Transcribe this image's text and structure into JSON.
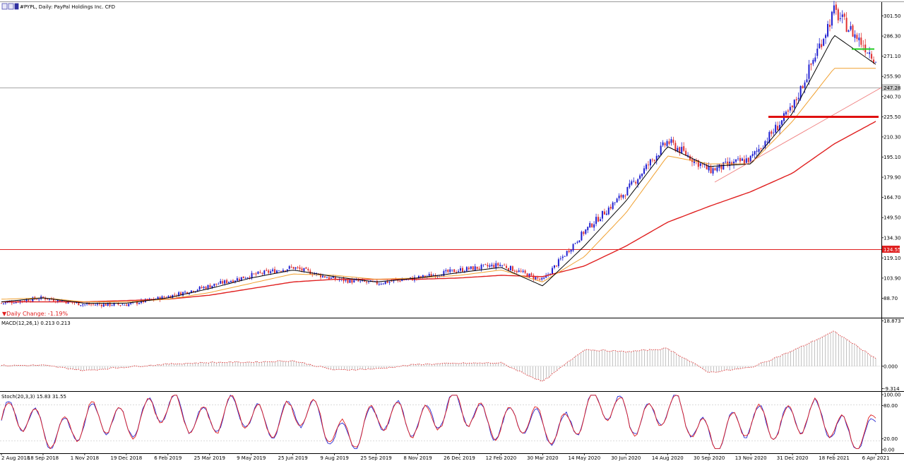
{
  "header": {
    "title": "#PYPL, Daily:  PayPal Holdings Inc. CFD"
  },
  "price_panel": {
    "ticks": [
      "301.50",
      "286.30",
      "271.10",
      "255.90",
      "240.70",
      "225.50",
      "210.30",
      "195.10",
      "179.90",
      "164.70",
      "149.50",
      "134.30",
      "119.10",
      "103.90",
      "88.70"
    ],
    "last_price": "247.28",
    "level_label": "124.55",
    "daily_change": "▼Daily Change: -1.19%"
  },
  "macd_panel": {
    "label": "MACD(12,26,1) 0.213 0.213",
    "ticks": [
      "18.873",
      "0.000",
      "-9.314"
    ]
  },
  "stoch_panel": {
    "label": "Stoch(20,3,3) 15.83 31.55",
    "ticks": [
      "100.00",
      "80.00",
      "20.00",
      "0.00"
    ]
  },
  "x_axis": {
    "labels": [
      "2 Aug 2018",
      "18 Sep 2018",
      "1 Nov 2018",
      "19 Dec 2018",
      "6 Feb 2019",
      "25 Mar 2019",
      "9 May 2019",
      "25 Jun 2019",
      "9 Aug 2019",
      "25 Sep 2019",
      "8 Nov 2019",
      "26 Dec 2019",
      "12 Feb 2020",
      "30 Mar 2020",
      "14 May 2020",
      "30 Jun 2020",
      "14 Aug 2020",
      "30 Sep 2020",
      "13 Nov 2020",
      "31 Dec 2020",
      "18 Feb 2021",
      "6 Apr 2021"
    ]
  },
  "colors": {
    "bull": "#1f1fd0",
    "bear": "#e03030",
    "sma_fast": "#000000",
    "sma_mid": "#f0a030",
    "sma_slow": "#e02020",
    "resistance": "#22cc22",
    "level": "#e02020"
  },
  "chart_data": [
    {
      "type": "line",
      "title": "#PYPL, Daily:  PayPal Holdings Inc. CFD",
      "x": [
        "2 Aug 2018",
        "18 Sep 2018",
        "1 Nov 2018",
        "19 Dec 2018",
        "6 Feb 2019",
        "25 Mar 2019",
        "9 May 2019",
        "25 Jun 2019",
        "9 Aug 2019",
        "25 Sep 2019",
        "8 Nov 2019",
        "26 Dec 2019",
        "12 Feb 2020",
        "30 Mar 2020",
        "14 May 2020",
        "30 Jun 2020",
        "14 Aug 2020",
        "30 Sep 2020",
        "13 Nov 2020",
        "31 Dec 2020",
        "18 Feb 2021",
        "6 Apr 2021"
      ],
      "ylim": [
        83,
        310
      ],
      "series": [
        {
          "values": [
            85,
            89,
            84,
            84,
            90,
            98,
            106,
            112,
            103,
            100,
            104,
            110,
            114,
            102,
            139,
            169,
            207,
            185,
            194,
            232,
            305,
            269
          ]
        },
        {
          "values": [
            86,
            89,
            85,
            85,
            89,
            96,
            104,
            110,
            105,
            101,
            104,
            108,
            112,
            98,
            128,
            162,
            203,
            188,
            190,
            228,
            287,
            265
          ]
        },
        {
          "values": [
            88,
            89,
            86,
            86,
            88,
            93,
            100,
            107,
            106,
            103,
            104,
            106,
            110,
            101,
            120,
            153,
            196,
            190,
            190,
            222,
            262,
            262
          ]
        },
        {
          "values": [
            86,
            86,
            86,
            87,
            88,
            91,
            96,
            101,
            103,
            103,
            103,
            104,
            106,
            105,
            113,
            128,
            146,
            158,
            169,
            183,
            205,
            222
          ]
        }
      ],
      "horizontal_levels": [
        124.55,
        247.28,
        226,
        276
      ]
    },
    {
      "type": "bar",
      "title": "MACD(12,26,1) 0.213 0.213",
      "x": [
        "2 Aug 2018",
        "18 Sep 2018",
        "1 Nov 2018",
        "19 Dec 2018",
        "6 Feb 2019",
        "25 Mar 2019",
        "9 May 2019",
        "25 Jun 2019",
        "9 Aug 2019",
        "25 Sep 2019",
        "8 Nov 2019",
        "26 Dec 2019",
        "12 Feb 2020",
        "30 Mar 2020",
        "14 May 2020",
        "30 Jun 2020",
        "14 Aug 2020",
        "30 Sep 2020",
        "13 Nov 2020",
        "31 Dec 2020",
        "18 Feb 2021",
        "6 Apr 2021"
      ],
      "values": [
        0.3,
        0.4,
        -1.8,
        -0.3,
        0.9,
        1.6,
        1.7,
        2.3,
        -1.6,
        -1.1,
        0.8,
        1.2,
        1.4,
        -6.5,
        7.0,
        6.0,
        7.4,
        -2.6,
        -0.5,
        6.4,
        14.5,
        3.3
      ],
      "ylim": [
        -9.314,
        18.873
      ]
    },
    {
      "type": "line",
      "title": "Stoch(20,3,3) 15.83 31.55",
      "x": [
        "2 Aug 2018",
        "18 Sep 2018",
        "1 Nov 2018",
        "19 Dec 2018",
        "6 Feb 2019",
        "25 Mar 2019",
        "9 May 2019",
        "25 Jun 2019",
        "9 Aug 2019",
        "25 Sep 2019",
        "8 Nov 2019",
        "26 Dec 2019",
        "12 Feb 2020",
        "30 Mar 2020",
        "14 May 2020",
        "30 Jun 2020",
        "14 Aug 2020",
        "30 Sep 2020",
        "13 Nov 2020",
        "31 Dec 2020",
        "18 Feb 2021",
        "6 Apr 2021"
      ],
      "ylim": [
        0,
        100
      ],
      "series": [
        {
          "values": [
            60,
            30,
            25,
            80,
            90,
            85,
            60,
            95,
            10,
            40,
            85,
            90,
            70,
            8,
            98,
            95,
            90,
            12,
            20,
            95,
            15,
            15.83
          ]
        },
        {
          "values": [
            58,
            32,
            28,
            78,
            88,
            84,
            62,
            92,
            15,
            42,
            83,
            88,
            72,
            12,
            96,
            93,
            88,
            15,
            22,
            93,
            18,
            31.55
          ]
        }
      ]
    }
  ]
}
